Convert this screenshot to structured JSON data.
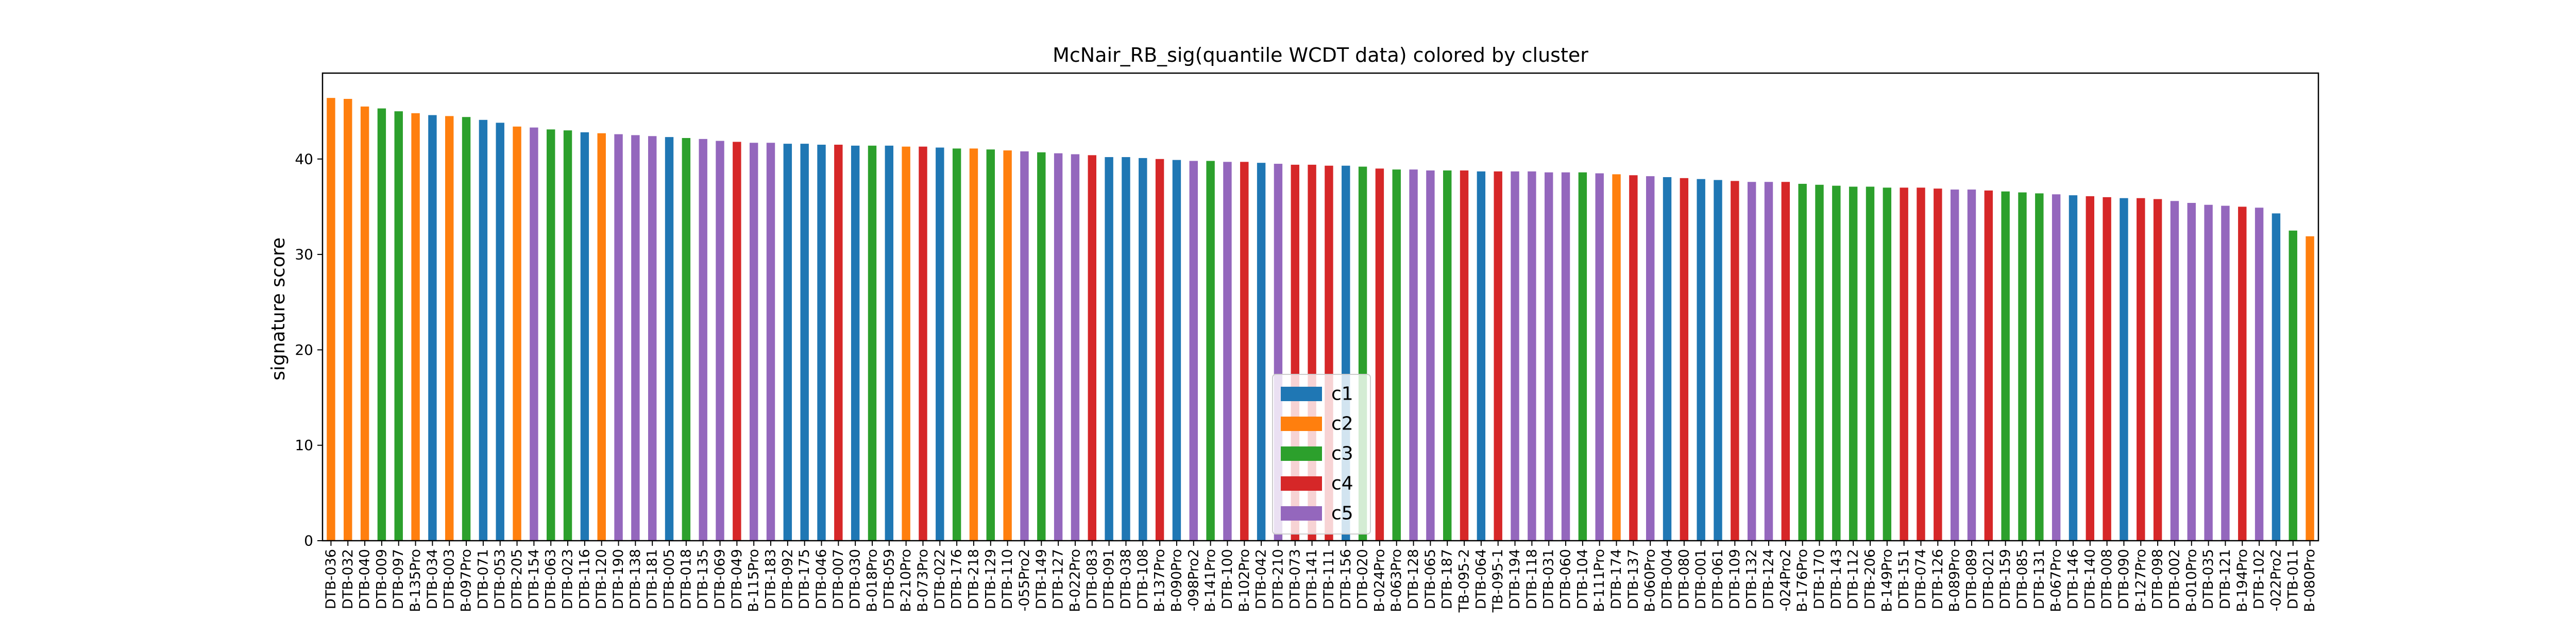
{
  "chart_data": {
    "type": "bar",
    "title": "McNair_RB_sig(quantile WCDT data) colored by cluster",
    "xlabel": "",
    "ylabel": "signature score",
    "ylim": [
      0,
      49
    ],
    "yticks": [
      0,
      10,
      20,
      30,
      40
    ],
    "grid": false,
    "legend": {
      "placement": "lower-center",
      "entries": [
        {
          "name": "c1",
          "color": "#1f77b4"
        },
        {
          "name": "c2",
          "color": "#ff7f0e"
        },
        {
          "name": "c3",
          "color": "#2ca02c"
        },
        {
          "name": "c4",
          "color": "#d62728"
        },
        {
          "name": "c5",
          "color": "#9467bd"
        }
      ]
    },
    "categories": [
      "DTB-036",
      "DTB-032",
      "DTB-040",
      "DTB-009",
      "DTB-097",
      "B-135Pro",
      "DTB-034",
      "DTB-003",
      "B-097Pro",
      "DTB-071",
      "DTB-053",
      "DTB-205",
      "DTB-154",
      "DTB-063",
      "DTB-023",
      "DTB-116",
      "DTB-120",
      "DTB-190",
      "DTB-138",
      "DTB-181",
      "DTB-005",
      "DTB-018",
      "DTB-135",
      "DTB-069",
      "DTB-049",
      "B-115Pro",
      "DTB-183",
      "DTB-092",
      "DTB-175",
      "DTB-046",
      "DTB-007",
      "DTB-030",
      "B-018Pro",
      "DTB-059",
      "B-210Pro",
      "B-073Pro",
      "DTB-022",
      "DTB-176",
      "DTB-218",
      "DTB-129",
      "DTB-110",
      "-055Pro2",
      "DTB-149",
      "DTB-127",
      "B-022Pro",
      "DTB-083",
      "DTB-091",
      "DTB-038",
      "DTB-108",
      "B-137Pro",
      "B-090Pro",
      "-098Pro2",
      "B-141Pro",
      "DTB-100",
      "B-102Pro",
      "DTB-042",
      "DTB-210",
      "DTB-073",
      "DTB-141",
      "DTB-111",
      "DTB-156",
      "DTB-020",
      "B-024Pro",
      "B-063Pro",
      "DTB-128",
      "DTB-065",
      "DTB-187",
      "TB-095-2",
      "DTB-064",
      "TB-095-1",
      "DTB-194",
      "DTB-118",
      "DTB-031",
      "DTB-060",
      "DTB-104",
      "B-111Pro",
      "DTB-174",
      "DTB-137",
      "B-060Pro",
      "DTB-004",
      "DTB-080",
      "DTB-001",
      "DTB-061",
      "DTB-109",
      "DTB-132",
      "DTB-124",
      "-024Pro2",
      "B-176Pro",
      "DTB-170",
      "DTB-143",
      "DTB-112",
      "DTB-206",
      "B-149Pro",
      "DTB-151",
      "DTB-074",
      "DTB-126",
      "B-089Pro",
      "DTB-089",
      "DTB-021",
      "DTB-159",
      "DTB-085",
      "DTB-131",
      "B-067Pro",
      "DTB-146",
      "DTB-140",
      "DTB-008",
      "DTB-090",
      "B-127Pro",
      "DTB-098",
      "DTB-002",
      "B-010Pro",
      "DTB-035",
      "DTB-121",
      "B-194Pro",
      "DTB-102",
      "-022Pro2",
      "DTB-011",
      "B-080Pro"
    ],
    "values": [
      46.4,
      46.3,
      45.5,
      45.3,
      45.0,
      44.8,
      44.6,
      44.5,
      44.4,
      44.1,
      43.8,
      43.4,
      43.3,
      43.1,
      43.0,
      42.8,
      42.7,
      42.6,
      42.5,
      42.4,
      42.3,
      42.2,
      42.1,
      41.9,
      41.8,
      41.7,
      41.7,
      41.6,
      41.6,
      41.5,
      41.5,
      41.4,
      41.4,
      41.4,
      41.3,
      41.3,
      41.2,
      41.1,
      41.1,
      41.0,
      40.9,
      40.8,
      40.7,
      40.6,
      40.5,
      40.4,
      40.2,
      40.2,
      40.1,
      40.0,
      39.9,
      39.8,
      39.8,
      39.7,
      39.7,
      39.6,
      39.5,
      39.4,
      39.4,
      39.3,
      39.3,
      39.2,
      39.0,
      38.9,
      38.9,
      38.8,
      38.8,
      38.8,
      38.7,
      38.7,
      38.7,
      38.7,
      38.6,
      38.6,
      38.6,
      38.5,
      38.4,
      38.3,
      38.2,
      38.1,
      38.0,
      37.9,
      37.8,
      37.7,
      37.6,
      37.6,
      37.6,
      37.4,
      37.3,
      37.2,
      37.1,
      37.1,
      37.0,
      37.0,
      37.0,
      36.9,
      36.8,
      36.8,
      36.7,
      36.6,
      36.5,
      36.4,
      36.3,
      36.2,
      36.1,
      36.0,
      35.9,
      35.9,
      35.8,
      35.6,
      35.4,
      35.2,
      35.1,
      35.0,
      34.9,
      34.3,
      32.5,
      31.9
    ],
    "clusters": [
      "c2",
      "c2",
      "c2",
      "c3",
      "c3",
      "c2",
      "c1",
      "c2",
      "c3",
      "c1",
      "c1",
      "c2",
      "c5",
      "c3",
      "c3",
      "c1",
      "c2",
      "c5",
      "c5",
      "c5",
      "c1",
      "c3",
      "c5",
      "c5",
      "c4",
      "c5",
      "c5",
      "c1",
      "c1",
      "c1",
      "c4",
      "c1",
      "c3",
      "c1",
      "c2",
      "c4",
      "c1",
      "c3",
      "c2",
      "c3",
      "c2",
      "c5",
      "c3",
      "c5",
      "c5",
      "c4",
      "c1",
      "c1",
      "c1",
      "c4",
      "c1",
      "c5",
      "c3",
      "c5",
      "c4",
      "c1",
      "c5",
      "c4",
      "c4",
      "c4",
      "c1",
      "c3",
      "c4",
      "c3",
      "c5",
      "c5",
      "c3",
      "c4",
      "c1",
      "c4",
      "c5",
      "c5",
      "c5",
      "c5",
      "c3",
      "c5",
      "c2",
      "c4",
      "c5",
      "c1",
      "c4",
      "c1",
      "c1",
      "c4",
      "c5",
      "c5",
      "c4",
      "c3",
      "c3",
      "c3",
      "c3",
      "c3",
      "c3",
      "c4",
      "c4",
      "c4",
      "c5",
      "c5",
      "c4",
      "c3",
      "c3",
      "c3",
      "c5",
      "c1",
      "c4",
      "c4",
      "c1",
      "c4",
      "c4",
      "c5",
      "c5",
      "c5",
      "c5",
      "c4",
      "c5",
      "c1",
      "c3",
      "c2"
    ]
  }
}
